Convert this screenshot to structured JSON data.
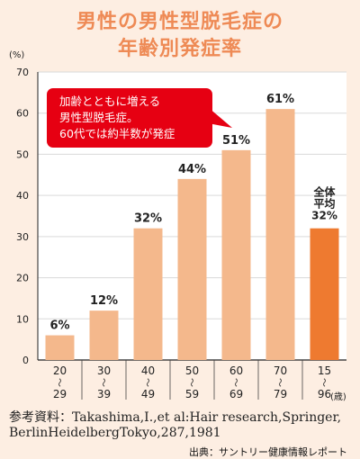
{
  "title_line1": "男性の男性型脱毛症の",
  "title_line2": "年齢別発症率",
  "chart_data": {
    "type": "bar",
    "yunit": "(%)",
    "ylim": [
      0,
      70
    ],
    "yticks": [
      "0",
      "10",
      "20",
      "30",
      "40",
      "50",
      "60",
      "70"
    ],
    "grid": true,
    "categories": [
      [
        "20",
        "〜",
        "29"
      ],
      [
        "30",
        "〜",
        "39"
      ],
      [
        "40",
        "〜",
        "49"
      ],
      [
        "50",
        "〜",
        "59"
      ],
      [
        "60",
        "〜",
        "69"
      ],
      [
        "70",
        "〜",
        "79"
      ],
      [
        "15",
        "〜",
        "96"
      ]
    ],
    "xunit": "(歳)",
    "values": [
      6,
      12,
      32,
      44,
      51,
      61,
      32
    ],
    "value_labels": [
      "6%",
      "12%",
      "32%",
      "44%",
      "51%",
      "61%",
      "32%"
    ],
    "last_bar_prefix_lines": [
      "全体",
      "平均"
    ],
    "bar_color": "#f4b88c",
    "highlight_color": "#ee7a30",
    "callout": {
      "lines": [
        "加齢とともに増える",
        "男性型脱毛症。",
        "60代では約半数が発症"
      ],
      "color": "#e60012"
    }
  },
  "reference_line1": "参考資料：Takashima,I.,et al:Hair research,Springer,",
  "reference_line2": "BerlinHeidelbergTokyo,287,1981",
  "credit": "出典：サントリー健康情報レポート"
}
